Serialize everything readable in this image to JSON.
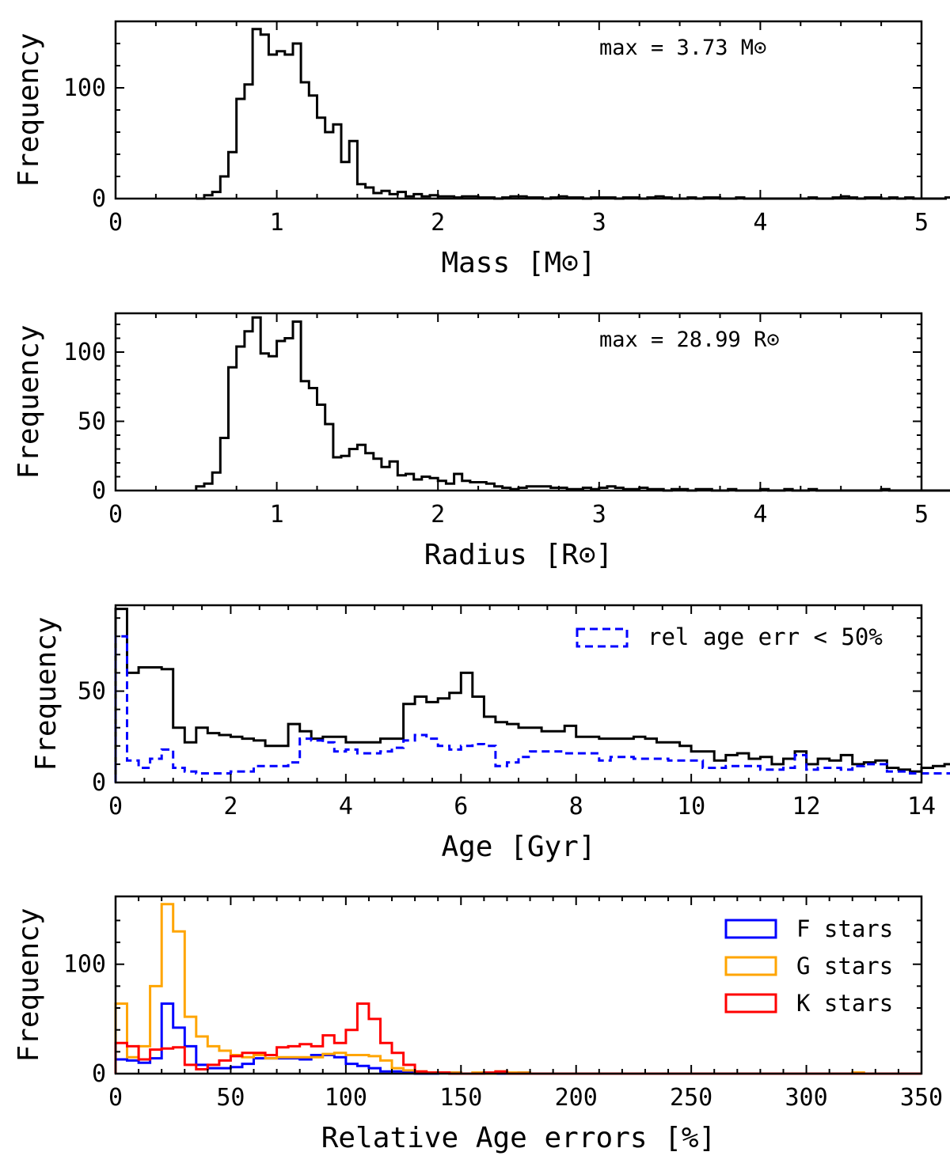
{
  "chart_data": [
    {
      "type": "histogram",
      "xlabel": "Mass [M⊙]",
      "ylabel": "Frequency",
      "xlim": [
        0,
        5
      ],
      "ylim": [
        0,
        160
      ],
      "xticks": [
        0,
        1,
        2,
        3,
        4,
        5
      ],
      "yticks": [
        0,
        100
      ],
      "annotation": "max = 3.73 M⊙",
      "bin_start": 0.5,
      "bin_width": 0.05,
      "series": [
        {
          "name": "all",
          "color": "#000000",
          "dashed": false,
          "values": [
            0,
            3,
            6,
            20,
            42,
            90,
            103,
            153,
            148,
            130,
            133,
            130,
            140,
            105,
            93,
            73,
            60,
            67,
            33,
            52,
            13,
            10,
            5,
            7,
            4,
            6,
            2,
            4,
            2,
            3,
            2,
            2,
            1,
            2,
            2,
            1,
            1,
            0,
            1,
            2,
            2,
            1,
            1,
            0,
            1,
            2,
            1,
            1,
            0,
            1,
            1,
            1,
            0,
            1,
            1,
            0,
            1,
            2,
            1,
            0,
            0,
            1,
            0,
            1,
            1,
            0,
            0,
            1,
            0,
            0,
            0,
            0,
            0,
            0,
            0,
            0,
            1,
            0,
            0,
            1,
            2,
            1,
            0,
            1,
            1,
            0,
            1,
            0,
            1,
            0,
            0,
            0,
            0,
            1,
            0,
            0,
            1,
            1,
            0,
            0,
            0,
            1,
            0,
            0,
            0,
            0,
            1,
            0,
            0,
            0,
            0,
            1,
            0,
            0,
            0,
            0,
            0,
            0,
            0,
            0,
            0,
            0,
            0,
            1,
            0
          ]
        }
      ]
    },
    {
      "type": "histogram",
      "xlabel": "Radius [R⊙]",
      "ylabel": "Frequency",
      "xlim": [
        0,
        5
      ],
      "ylim": [
        0,
        128
      ],
      "xticks": [
        0,
        1,
        2,
        3,
        4,
        5
      ],
      "yticks": [
        0,
        50,
        100
      ],
      "annotation": "max = 28.99 R⊙",
      "bin_start": 0.5,
      "bin_width": 0.05,
      "series": [
        {
          "name": "all",
          "color": "#000000",
          "dashed": false,
          "values": [
            3,
            5,
            13,
            38,
            89,
            104,
            115,
            125,
            99,
            97,
            108,
            110,
            122,
            79,
            74,
            62,
            48,
            24,
            25,
            30,
            33,
            27,
            23,
            17,
            21,
            11,
            12,
            8,
            10,
            9,
            7,
            5,
            12,
            7,
            6,
            6,
            5,
            3,
            2,
            1,
            2,
            3,
            3,
            3,
            2,
            2,
            1,
            1,
            2,
            1,
            2,
            3,
            2,
            1,
            1,
            2,
            1,
            1,
            0,
            1,
            1,
            0,
            1,
            1,
            0,
            0,
            1,
            0,
            0,
            0,
            1,
            0,
            0,
            1,
            0,
            0,
            1,
            0,
            0,
            0,
            0,
            0,
            0,
            0,
            0,
            1,
            0,
            0,
            0,
            0,
            0,
            0,
            0,
            0,
            0,
            0,
            0,
            0,
            0,
            0,
            0,
            0,
            0,
            0,
            0,
            0,
            0,
            0,
            0,
            0,
            0,
            0,
            0,
            0,
            1,
            1,
            1,
            0,
            0,
            0,
            0,
            0,
            0,
            0,
            1,
            0,
            1,
            0,
            0,
            0,
            0,
            0,
            0,
            0,
            0,
            0,
            0,
            0,
            0,
            1,
            1,
            0,
            0,
            0,
            0,
            0,
            0,
            0,
            1,
            2,
            1,
            0,
            0,
            0,
            0,
            1,
            0,
            0,
            1,
            0
          ]
        }
      ]
    },
    {
      "type": "histogram",
      "xlabel": "Age [Gyr]",
      "ylabel": "Frequency",
      "xlim": [
        0,
        14
      ],
      "ylim": [
        0,
        97
      ],
      "xticks": [
        0,
        2,
        4,
        6,
        8,
        10,
        12,
        14
      ],
      "yticks": [
        0,
        50
      ],
      "legend_position": "top-right",
      "bin_start": 0,
      "bin_width": 0.2,
      "series": [
        {
          "name": "all",
          "color": "#000000",
          "dashed": false,
          "values": [
            95,
            60,
            63,
            63,
            62,
            30,
            22,
            30,
            27,
            26,
            25,
            24,
            23,
            20,
            20,
            32,
            28,
            24,
            25,
            25,
            22,
            22,
            22,
            24,
            24,
            43,
            47,
            44,
            46,
            49,
            60,
            47,
            36,
            33,
            32,
            30,
            30,
            28,
            28,
            31,
            25,
            25,
            24,
            24,
            24,
            25,
            24,
            22,
            22,
            20,
            17,
            17,
            12,
            15,
            16,
            13,
            14,
            10,
            13,
            17,
            10,
            13,
            12,
            15,
            10,
            11,
            12,
            8,
            7,
            6,
            8,
            9,
            10,
            11,
            11,
            11,
            13,
            20,
            6,
            5,
            7,
            5,
            6,
            0,
            0,
            0,
            0,
            0,
            0,
            0,
            0
          ]
        },
        {
          "name": "rel age err < 50%",
          "color": "#0000ff",
          "dashed": true,
          "values": [
            80,
            12,
            8,
            13,
            18,
            8,
            6,
            5,
            5,
            5,
            6,
            6,
            9,
            9,
            9,
            11,
            24,
            23,
            22,
            17,
            18,
            16,
            16,
            17,
            19,
            23,
            26,
            24,
            20,
            18,
            20,
            21,
            20,
            9,
            11,
            14,
            17,
            17,
            17,
            16,
            16,
            16,
            12,
            14,
            14,
            13,
            13,
            13,
            12,
            12,
            12,
            8,
            8,
            9,
            9,
            9,
            7,
            7,
            8,
            15,
            7,
            8,
            8,
            7,
            9,
            10,
            10,
            6,
            6,
            5,
            5,
            5,
            5,
            6,
            8,
            8,
            9,
            10,
            16,
            8,
            6,
            6,
            6,
            0,
            0,
            0,
            0,
            0,
            0,
            0,
            0
          ]
        }
      ]
    },
    {
      "type": "histogram",
      "xlabel": "Relative Age errors [%]",
      "ylabel": "Frequency",
      "xlim": [
        0,
        350
      ],
      "ylim": [
        0,
        162
      ],
      "xticks": [
        0,
        50,
        100,
        150,
        200,
        250,
        300,
        350
      ],
      "yticks": [
        0,
        100
      ],
      "legend_position": "top-right",
      "bin_start": 0,
      "bin_width": 5,
      "series": [
        {
          "name": "F stars",
          "color": "#0000ff",
          "dashed": false,
          "values": [
            13,
            12,
            10,
            14,
            64,
            42,
            25,
            8,
            5,
            5,
            6,
            9,
            14,
            14,
            14,
            14,
            13,
            17,
            17,
            15,
            9,
            7,
            5,
            2,
            2,
            1,
            0,
            0,
            1,
            1,
            0,
            0,
            0,
            0,
            0,
            1,
            0,
            0,
            0,
            0,
            0,
            0,
            0,
            0,
            0,
            0,
            0,
            0,
            0,
            0,
            0,
            0,
            0,
            0,
            0,
            0,
            0,
            0,
            0,
            0,
            0,
            0,
            0,
            0,
            0,
            0,
            0,
            0,
            0,
            0
          ]
        },
        {
          "name": "G stars",
          "color": "#ffa500",
          "dashed": false,
          "values": [
            64,
            15,
            25,
            80,
            155,
            130,
            52,
            34,
            25,
            21,
            17,
            15,
            17,
            14,
            15,
            15,
            15,
            15,
            18,
            19,
            17,
            17,
            16,
            12,
            5,
            3,
            2,
            1,
            1,
            1,
            0,
            1,
            0,
            2,
            1,
            1,
            0,
            0,
            0,
            0,
            0,
            0,
            0,
            0,
            0,
            0,
            0,
            0,
            0,
            0,
            0,
            0,
            0,
            0,
            0,
            0,
            0,
            0,
            0,
            0,
            0,
            0,
            0,
            0,
            1,
            0,
            0,
            0,
            0,
            0
          ]
        },
        {
          "name": "K stars",
          "color": "#ff0000",
          "dashed": false,
          "values": [
            28,
            25,
            13,
            22,
            23,
            24,
            8,
            4,
            8,
            12,
            16,
            19,
            19,
            17,
            24,
            25,
            27,
            25,
            35,
            28,
            40,
            64,
            50,
            28,
            19,
            8,
            2,
            1,
            1,
            0,
            0,
            0,
            1,
            2,
            0,
            0,
            0,
            0,
            0,
            0,
            0,
            0,
            0,
            0,
            0,
            0,
            0,
            0,
            0,
            0,
            0,
            0,
            0,
            0,
            0,
            0,
            0,
            0,
            0,
            0,
            0,
            0,
            0,
            0,
            0,
            0,
            0,
            0,
            0,
            0
          ]
        }
      ]
    }
  ]
}
